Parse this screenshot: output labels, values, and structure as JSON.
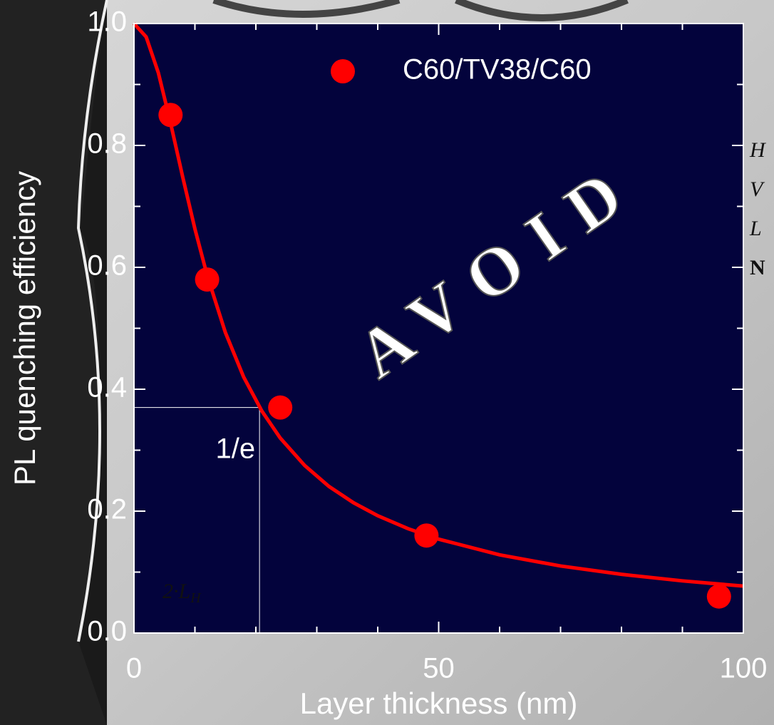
{
  "chart_data": {
    "type": "scatter",
    "xlabel": "Layer thickness (nm)",
    "ylabel": "PL quenching efficiency",
    "xlim": [
      0,
      100
    ],
    "ylim": [
      0,
      1
    ],
    "xticks": [
      0,
      50,
      100
    ],
    "xminorticks": [
      10,
      20,
      30,
      40,
      60,
      70,
      80,
      90
    ],
    "yticks": [
      {
        "value": 0,
        "label": "0.0"
      },
      0.2,
      0.4,
      0.6,
      0.8,
      {
        "value": 1,
        "label": "1.0"
      }
    ],
    "yminorticks": [
      0.1,
      0.3,
      0.5,
      0.7,
      0.9
    ],
    "legend": "top",
    "background": "#03033c",
    "series": [
      {
        "name": "C60/TV38/C60",
        "color": "#ff0000",
        "x": [
          6,
          12,
          24,
          48,
          96
        ],
        "values": [
          0.85,
          0.58,
          0.37,
          0.16,
          0.06
        ]
      }
    ],
    "fit": {
      "color": "#ff0000",
      "x": [
        0,
        2,
        4,
        6,
        8,
        10,
        12,
        15,
        18,
        21,
        24,
        28,
        32,
        36,
        40,
        45,
        50,
        60,
        70,
        80,
        90,
        100
      ],
      "values": [
        1.0,
        0.978,
        0.919,
        0.837,
        0.748,
        0.663,
        0.587,
        0.493,
        0.42,
        0.364,
        0.32,
        0.275,
        0.2405,
        0.2139,
        0.1925,
        0.1711,
        0.154,
        0.1283,
        0.11,
        0.0963,
        0.0856,
        0.077
      ]
    },
    "guide": {
      "x": 20.6,
      "y": 0.37,
      "label": "1/e",
      "x_label": "2·L",
      "x_label_sub": "H"
    },
    "watermark": "AVOID",
    "side_text": [
      "H",
      "V",
      "L",
      "N"
    ]
  }
}
